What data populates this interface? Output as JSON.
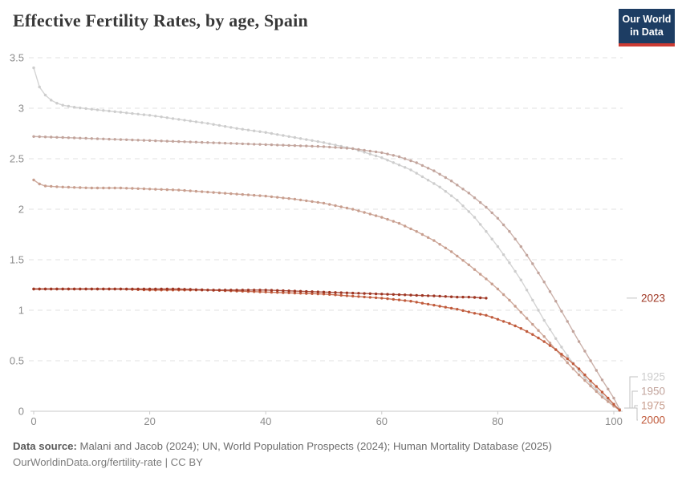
{
  "header": {
    "title": "Effective Fertility Rates, by age, Spain",
    "logo": {
      "line1": "Our World",
      "line2": "in Data",
      "bg_color": "#1d3d63",
      "accent_color": "#cc3b33"
    }
  },
  "chart_data": {
    "type": "line",
    "title": "Effective Fertility Rates, by age, Spain",
    "xlabel": "",
    "ylabel": "",
    "xlim": [
      0,
      102
    ],
    "ylim": [
      0,
      3.5
    ],
    "x_ticks": [
      0,
      20,
      40,
      60,
      80,
      100
    ],
    "y_ticks": [
      0,
      0.5,
      1,
      1.5,
      2,
      2.5,
      3,
      3.5
    ],
    "grid": "horizontal-dashed",
    "legend_position": "right-line-end-labels",
    "marker": "circle-every-year",
    "series": [
      {
        "name": "1925",
        "color": "#cdcdcd",
        "points": [
          [
            0,
            3.4
          ],
          [
            1,
            3.21
          ],
          [
            2,
            3.13
          ],
          [
            3,
            3.08
          ],
          [
            4,
            3.05
          ],
          [
            5,
            3.03
          ],
          [
            7,
            3.01
          ],
          [
            10,
            2.99
          ],
          [
            15,
            2.96
          ],
          [
            20,
            2.93
          ],
          [
            25,
            2.89
          ],
          [
            30,
            2.85
          ],
          [
            35,
            2.8
          ],
          [
            40,
            2.76
          ],
          [
            45,
            2.71
          ],
          [
            50,
            2.66
          ],
          [
            55,
            2.6
          ],
          [
            60,
            2.51
          ],
          [
            65,
            2.39
          ],
          [
            70,
            2.22
          ],
          [
            73,
            2.09
          ],
          [
            76,
            1.92
          ],
          [
            78,
            1.78
          ],
          [
            80,
            1.63
          ],
          [
            82,
            1.47
          ],
          [
            84,
            1.3
          ],
          [
            86,
            1.1
          ],
          [
            88,
            0.9
          ],
          [
            90,
            0.72
          ],
          [
            92,
            0.55
          ],
          [
            94,
            0.4
          ],
          [
            96,
            0.27
          ],
          [
            98,
            0.16
          ],
          [
            100,
            0.06
          ],
          [
            101,
            0.01
          ]
        ]
      },
      {
        "name": "1950",
        "color": "#c2a49c",
        "points": [
          [
            0,
            2.72
          ],
          [
            5,
            2.71
          ],
          [
            10,
            2.7
          ],
          [
            15,
            2.69
          ],
          [
            20,
            2.68
          ],
          [
            25,
            2.67
          ],
          [
            30,
            2.66
          ],
          [
            35,
            2.65
          ],
          [
            40,
            2.64
          ],
          [
            45,
            2.63
          ],
          [
            50,
            2.62
          ],
          [
            55,
            2.6
          ],
          [
            60,
            2.56
          ],
          [
            63,
            2.52
          ],
          [
            66,
            2.46
          ],
          [
            69,
            2.38
          ],
          [
            72,
            2.28
          ],
          [
            75,
            2.16
          ],
          [
            78,
            2.02
          ],
          [
            80,
            1.91
          ],
          [
            82,
            1.78
          ],
          [
            84,
            1.63
          ],
          [
            86,
            1.46
          ],
          [
            88,
            1.28
          ],
          [
            90,
            1.09
          ],
          [
            92,
            0.89
          ],
          [
            94,
            0.69
          ],
          [
            96,
            0.5
          ],
          [
            98,
            0.31
          ],
          [
            100,
            0.13
          ],
          [
            101,
            0.02
          ]
        ]
      },
      {
        "name": "1975",
        "color": "#c89e8e",
        "points": [
          [
            0,
            2.29
          ],
          [
            1,
            2.25
          ],
          [
            2,
            2.23
          ],
          [
            5,
            2.22
          ],
          [
            10,
            2.21
          ],
          [
            15,
            2.21
          ],
          [
            20,
            2.2
          ],
          [
            25,
            2.19
          ],
          [
            30,
            2.17
          ],
          [
            35,
            2.15
          ],
          [
            40,
            2.13
          ],
          [
            45,
            2.1
          ],
          [
            50,
            2.06
          ],
          [
            55,
            2.0
          ],
          [
            60,
            1.92
          ],
          [
            63,
            1.86
          ],
          [
            66,
            1.78
          ],
          [
            69,
            1.69
          ],
          [
            72,
            1.58
          ],
          [
            75,
            1.45
          ],
          [
            78,
            1.31
          ],
          [
            80,
            1.21
          ],
          [
            82,
            1.1
          ],
          [
            84,
            0.98
          ],
          [
            86,
            0.86
          ],
          [
            88,
            0.74
          ],
          [
            90,
            0.61
          ],
          [
            92,
            0.48
          ],
          [
            94,
            0.36
          ],
          [
            96,
            0.25
          ],
          [
            98,
            0.14
          ],
          [
            100,
            0.05
          ],
          [
            101,
            0.01
          ]
        ]
      },
      {
        "name": "2000",
        "color": "#c05a3b",
        "points": [
          [
            0,
            1.21
          ],
          [
            5,
            1.21
          ],
          [
            10,
            1.21
          ],
          [
            15,
            1.21
          ],
          [
            20,
            1.2
          ],
          [
            25,
            1.2
          ],
          [
            30,
            1.2
          ],
          [
            35,
            1.19
          ],
          [
            40,
            1.18
          ],
          [
            45,
            1.17
          ],
          [
            50,
            1.16
          ],
          [
            55,
            1.14
          ],
          [
            60,
            1.12
          ],
          [
            65,
            1.09
          ],
          [
            70,
            1.04
          ],
          [
            73,
            1.01
          ],
          [
            76,
            0.97
          ],
          [
            78,
            0.95
          ],
          [
            80,
            0.91
          ],
          [
            82,
            0.87
          ],
          [
            84,
            0.82
          ],
          [
            86,
            0.76
          ],
          [
            88,
            0.69
          ],
          [
            90,
            0.61
          ],
          [
            92,
            0.52
          ],
          [
            94,
            0.42
          ],
          [
            96,
            0.3
          ],
          [
            98,
            0.19
          ],
          [
            100,
            0.07
          ],
          [
            101,
            0.01
          ]
        ]
      },
      {
        "name": "2023",
        "color": "#9e3522",
        "points": [
          [
            0,
            1.21
          ],
          [
            5,
            1.21
          ],
          [
            10,
            1.21
          ],
          [
            15,
            1.21
          ],
          [
            20,
            1.21
          ],
          [
            25,
            1.21
          ],
          [
            30,
            1.2
          ],
          [
            35,
            1.2
          ],
          [
            40,
            1.2
          ],
          [
            45,
            1.19
          ],
          [
            50,
            1.18
          ],
          [
            55,
            1.17
          ],
          [
            60,
            1.16
          ],
          [
            65,
            1.15
          ],
          [
            70,
            1.14
          ],
          [
            73,
            1.13
          ],
          [
            75,
            1.13
          ],
          [
            78,
            1.12
          ]
        ]
      }
    ],
    "colors": {
      "grid": "#e2e2e2",
      "axis": "#c9c9c9",
      "tick_label": "#8c8c8c",
      "connector": "#c2c2c2"
    }
  },
  "footer": {
    "datasource_label": "Data source:",
    "datasource_text": " Malani and Jacob (2024); UN, World Population Prospects (2024); Human Mortality Database (2025)",
    "license_text": "OurWorldinData.org/fertility-rate | CC BY"
  }
}
